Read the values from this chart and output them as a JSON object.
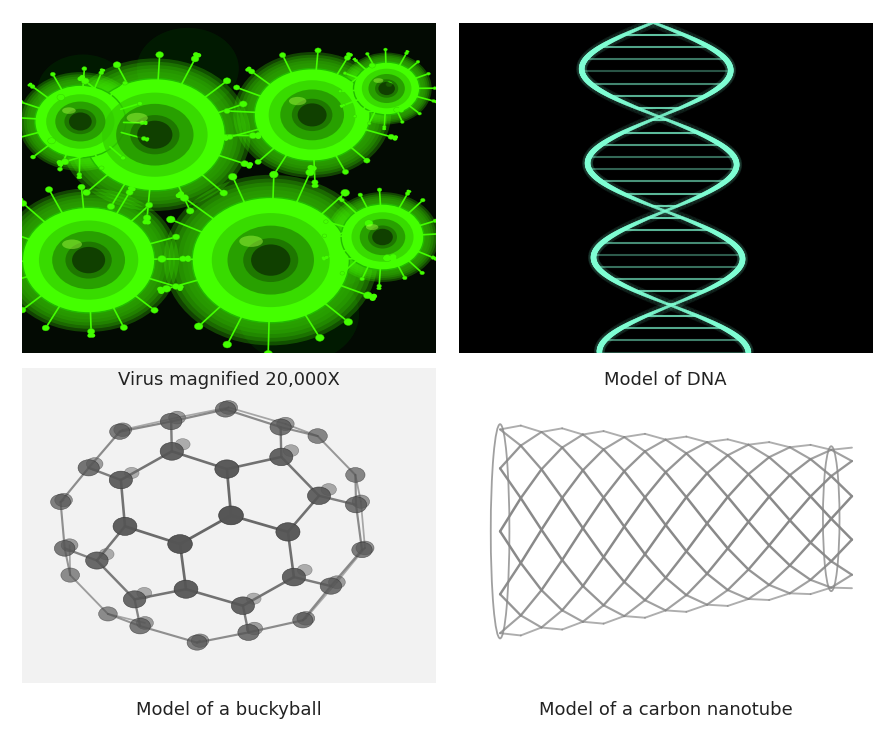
{
  "title": "",
  "background_color": "#ffffff",
  "captions": [
    "Virus magnified 20,000X",
    "Model of DNA",
    "Model of a buckyball",
    "Model of a carbon nanotube"
  ],
  "caption_fontsize": 13,
  "caption_color": "#222222",
  "fig_width": 8.95,
  "fig_height": 7.5,
  "dpi": 100,
  "virus_bg": "#030a03",
  "virus_color": "#44ff00",
  "dna_bg": "#000000",
  "dna_color": "#7fffd4",
  "buckyball_bg": "#f2f2f2",
  "buckyball_atom_color": "#555555",
  "buckyball_bond_color": "#666666",
  "cnt_bg": "#ffffff",
  "cnt_color": "#888888"
}
